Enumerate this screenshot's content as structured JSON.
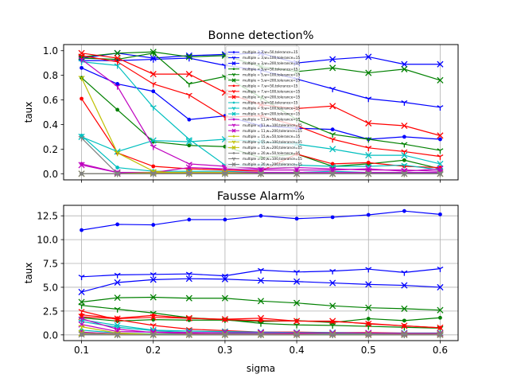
{
  "chart_data": [
    {
      "type": "line",
      "title": "Bonne detection%",
      "xlabel": "",
      "ylabel": "taux",
      "xlim": [
        0.075,
        0.625
      ],
      "ylim": [
        -0.05,
        1.05
      ],
      "grid": "x-only",
      "legend_position": "center (overlapping plot)",
      "xticks": [
        "0.1",
        "0.2",
        "0.3",
        "0.4",
        "0.5",
        "0.6"
      ],
      "yticks": [
        "0.0",
        "0.2",
        "0.4",
        "0.6",
        "0.8",
        "1.0"
      ],
      "x": [
        0.1,
        0.15,
        0.2,
        0.25,
        0.3,
        0.35,
        0.4,
        0.45,
        0.5,
        0.55,
        0.6
      ],
      "series": [
        {
          "name": "multiple = 3,w=50,tolerance=15",
          "color": "#0000ff",
          "marker": ".",
          "values": [
            0.86,
            0.73,
            0.67,
            0.44,
            0.47,
            0.39,
            0.37,
            0.36,
            0.28,
            0.3,
            0.28
          ]
        },
        {
          "name": "multiple = 3,w=100,tolerance=15",
          "color": "#0000ff",
          "marker": "1",
          "values": [
            0.92,
            0.92,
            0.93,
            0.94,
            0.88,
            0.84,
            0.77,
            0.69,
            0.61,
            0.58,
            0.54
          ]
        },
        {
          "name": "multiple = 3,w=200,tolerance=15",
          "color": "#0000ff",
          "marker": "x",
          "values": [
            0.94,
            0.98,
            0.94,
            0.96,
            0.97,
            0.98,
            0.9,
            0.93,
            0.95,
            0.89,
            0.89
          ]
        },
        {
          "name": "multiple = 5,w=50,tolerance=15",
          "color": "#008000",
          "marker": ".",
          "values": [
            0.78,
            0.52,
            0.26,
            0.23,
            0.22,
            0.13,
            0.16,
            0.06,
            0.08,
            0.11,
            0.04
          ]
        },
        {
          "name": "multiple = 5,w=100,tolerance=15",
          "color": "#008000",
          "marker": "1",
          "values": [
            0.94,
            0.93,
            0.98,
            0.73,
            0.79,
            0.62,
            0.44,
            0.32,
            0.28,
            0.24,
            0.19
          ]
        },
        {
          "name": "multiple = 5,w=200,tolerance=15",
          "color": "#008000",
          "marker": "x",
          "values": [
            0.95,
            0.98,
            0.99,
            0.95,
            0.96,
            0.87,
            0.83,
            0.86,
            0.82,
            0.85,
            0.76
          ]
        },
        {
          "name": "multiple = 7,w=50,tolerance=15",
          "color": "#ff0000",
          "marker": ".",
          "values": [
            0.61,
            0.17,
            0.06,
            0.04,
            0.03,
            0.02,
            0.16,
            0.08,
            0.09,
            0.06,
            0.05
          ]
        },
        {
          "name": "multiple = 7,w=100,tolerance=15",
          "color": "#ff0000",
          "marker": "1",
          "values": [
            0.96,
            0.91,
            0.73,
            0.64,
            0.46,
            0.47,
            0.39,
            0.28,
            0.21,
            0.18,
            0.14
          ]
        },
        {
          "name": "multiple = 7,w=200,tolerance=15",
          "color": "#ff0000",
          "marker": "x",
          "values": [
            0.98,
            0.94,
            0.81,
            0.81,
            0.66,
            0.56,
            0.53,
            0.55,
            0.41,
            0.39,
            0.31
          ]
        },
        {
          "name": "multiple = 9,w=50,tolerance=15",
          "color": "#00bfbf",
          "marker": ".",
          "values": [
            0.31,
            0.05,
            0.02,
            0.02,
            0.02,
            0.01,
            0.01,
            0.02,
            0.01,
            0.01,
            0.01
          ]
        },
        {
          "name": "multiple = 9,w=100,tolerance=15",
          "color": "#00bfbf",
          "marker": "1",
          "values": [
            0.91,
            0.88,
            0.54,
            0.28,
            0.07,
            0.07,
            0.07,
            0.06,
            0.06,
            0.07,
            0.03
          ]
        },
        {
          "name": "multiple = 9,w=200,tolerance=15",
          "color": "#00bfbf",
          "marker": "x",
          "values": [
            0.3,
            0.18,
            0.27,
            0.26,
            0.28,
            0.26,
            0.24,
            0.2,
            0.15,
            0.15,
            0.08
          ]
        },
        {
          "name": "multiple = 11,w=50,tolerance=15",
          "color": "#bf00bf",
          "marker": ".",
          "values": [
            0.08,
            0.01,
            0.01,
            0.01,
            0.01,
            0.01,
            0.01,
            0.01,
            0.01,
            0.01,
            0.01
          ]
        },
        {
          "name": "multiple = 11,w=100,tolerance=15",
          "color": "#bf00bf",
          "marker": "1",
          "values": [
            0.93,
            0.71,
            0.22,
            0.08,
            0.06,
            0.04,
            0.05,
            0.04,
            0.03,
            0.03,
            0.02
          ]
        },
        {
          "name": "multiple = 11,w=200,tolerance=15",
          "color": "#bf00bf",
          "marker": "x",
          "values": [
            0.07,
            0.01,
            0.01,
            0.05,
            0.04,
            0.03,
            0.03,
            0.03,
            0.04,
            0.02,
            0.04
          ]
        },
        {
          "name": "multiple = 15,w=50,tolerance=15",
          "color": "#bfbf00",
          "marker": ".",
          "values": [
            0.0,
            0.0,
            0.0,
            0.0,
            0.0,
            0.0,
            0.0,
            0.0,
            0.0,
            0.0,
            0.0
          ]
        },
        {
          "name": "multiple = 15,w=100,tolerance=15",
          "color": "#bfbf00",
          "marker": "1",
          "values": [
            0.78,
            0.17,
            0.02,
            0.0,
            0.0,
            0.0,
            0.0,
            0.0,
            0.0,
            0.0,
            0.0
          ]
        },
        {
          "name": "multiple = 15,w=200,tolerance=15",
          "color": "#bfbf00",
          "marker": "x",
          "values": [
            0.0,
            0.0,
            0.01,
            0.01,
            0.01,
            0.0,
            0.0,
            0.0,
            0.0,
            0.0,
            0.0
          ]
        },
        {
          "name": "multiple = 20,w=50,tolerance=15",
          "color": "#808080",
          "marker": ".",
          "values": [
            0.0,
            0.0,
            0.0,
            0.0,
            0.0,
            0.0,
            0.0,
            0.0,
            0.0,
            0.0,
            0.0
          ]
        },
        {
          "name": "multiple = 20,w=100,tolerance=15",
          "color": "#808080",
          "marker": "1",
          "values": [
            0.29,
            0.0,
            0.0,
            0.0,
            0.0,
            0.0,
            0.0,
            0.0,
            0.0,
            0.0,
            0.0
          ]
        },
        {
          "name": "multiple = 20,w=200,tolerance=15",
          "color": "#808080",
          "marker": "x",
          "values": [
            0.0,
            0.0,
            0.0,
            0.0,
            0.0,
            0.0,
            0.0,
            0.0,
            0.0,
            0.0,
            0.0
          ]
        }
      ]
    },
    {
      "type": "line",
      "title": "Fausse Alarm%",
      "xlabel": "sigma",
      "ylabel": "taux",
      "xlim": [
        0.075,
        0.625
      ],
      "ylim": [
        -0.6,
        13.6
      ],
      "grid": "both",
      "xticks": [
        "0.1",
        "0.2",
        "0.3",
        "0.4",
        "0.5",
        "0.6"
      ],
      "yticks": [
        "0.0",
        "2.5",
        "5.0",
        "7.5",
        "10.0",
        "12.5"
      ],
      "x": [
        0.1,
        0.15,
        0.2,
        0.25,
        0.3,
        0.35,
        0.4,
        0.45,
        0.5,
        0.55,
        0.6
      ],
      "series": [
        {
          "color": "#0000ff",
          "marker": ".",
          "values": [
            11.0,
            11.6,
            11.55,
            12.1,
            12.1,
            12.5,
            12.2,
            12.35,
            12.6,
            13.0,
            12.65
          ]
        },
        {
          "color": "#0000ff",
          "marker": "1",
          "values": [
            6.1,
            6.3,
            6.35,
            6.4,
            6.2,
            6.8,
            6.6,
            6.7,
            6.9,
            6.55,
            6.95
          ]
        },
        {
          "color": "#0000ff",
          "marker": "x",
          "values": [
            4.5,
            5.5,
            5.8,
            5.9,
            5.85,
            5.7,
            5.6,
            5.45,
            5.3,
            5.2,
            5.0
          ]
        },
        {
          "color": "#008000",
          "marker": ".",
          "values": [
            1.8,
            1.45,
            1.6,
            1.55,
            1.55,
            1.4,
            1.5,
            1.3,
            1.7,
            1.5,
            1.8
          ]
        },
        {
          "color": "#008000",
          "marker": "1",
          "values": [
            3.1,
            2.7,
            2.3,
            1.8,
            1.6,
            1.2,
            1.05,
            1.0,
            0.9,
            0.8,
            0.7
          ]
        },
        {
          "color": "#008000",
          "marker": "x",
          "values": [
            3.45,
            3.9,
            3.95,
            3.85,
            3.85,
            3.55,
            3.35,
            3.05,
            2.85,
            2.75,
            2.6
          ]
        },
        {
          "color": "#ff0000",
          "marker": ".",
          "values": [
            2.1,
            1.75,
            2.05,
            1.75,
            1.6,
            1.5,
            1.45,
            1.4,
            1.2,
            0.95,
            0.75
          ]
        },
        {
          "color": "#ff0000",
          "marker": "1",
          "values": [
            2.5,
            1.6,
            1.0,
            0.6,
            0.45,
            0.3,
            0.3,
            0.25,
            0.25,
            0.2,
            0.2
          ]
        },
        {
          "color": "#ff0000",
          "marker": "x",
          "values": [
            1.9,
            1.7,
            1.85,
            1.75,
            1.65,
            1.75,
            1.45,
            1.45,
            1.15,
            0.95,
            0.75
          ]
        },
        {
          "color": "#00bfbf",
          "marker": ".",
          "values": [
            0.5,
            0.2,
            0.1,
            0.1,
            0.05,
            0.05,
            0.05,
            0.05,
            0.05,
            0.05,
            0.05
          ]
        },
        {
          "color": "#00bfbf",
          "marker": "1",
          "values": [
            1.4,
            0.8,
            0.45,
            0.25,
            0.2,
            0.15,
            0.15,
            0.15,
            0.1,
            0.1,
            0.1
          ]
        },
        {
          "color": "#00bfbf",
          "marker": "x",
          "values": [
            1.6,
            1.0,
            0.5,
            0.4,
            0.35,
            0.3,
            0.25,
            0.25,
            0.2,
            0.2,
            0.2
          ]
        },
        {
          "color": "#bf00bf",
          "marker": ".",
          "values": [
            0.3,
            0.1,
            0.05,
            0.05,
            0.05,
            0.05,
            0.05,
            0.05,
            0.05,
            0.05,
            0.05
          ]
        },
        {
          "color": "#bf00bf",
          "marker": "1",
          "values": [
            1.7,
            0.6,
            0.25,
            0.15,
            0.1,
            0.1,
            0.1,
            0.05,
            0.05,
            0.05,
            0.05
          ]
        },
        {
          "color": "#bf00bf",
          "marker": "x",
          "values": [
            1.1,
            0.35,
            0.3,
            0.25,
            0.25,
            0.25,
            0.2,
            0.2,
            0.2,
            0.15,
            0.15
          ]
        },
        {
          "color": "#bfbf00",
          "marker": ".",
          "values": [
            0.05,
            0.05,
            0.0,
            0.0,
            0.0,
            0.0,
            0.0,
            0.0,
            0.0,
            0.0,
            0.0
          ]
        },
        {
          "color": "#bfbf00",
          "marker": "1",
          "values": [
            0.85,
            0.2,
            0.05,
            0.0,
            0.0,
            0.0,
            0.0,
            0.0,
            0.0,
            0.0,
            0.0
          ]
        },
        {
          "color": "#bfbf00",
          "marker": "x",
          "values": [
            0.2,
            0.05,
            0.05,
            0.05,
            0.05,
            0.05,
            0.05,
            0.05,
            0.05,
            0.05,
            0.05
          ]
        },
        {
          "color": "#808080",
          "marker": ".",
          "values": [
            0.0,
            0.0,
            0.0,
            0.0,
            0.0,
            0.0,
            0.0,
            0.0,
            0.0,
            0.0,
            0.0
          ]
        },
        {
          "color": "#808080",
          "marker": "1",
          "values": [
            0.15,
            0.0,
            0.0,
            0.0,
            0.0,
            0.0,
            0.0,
            0.0,
            0.0,
            0.0,
            0.0
          ]
        },
        {
          "color": "#808080",
          "marker": "x",
          "values": [
            0.05,
            0.0,
            0.0,
            0.0,
            0.0,
            0.0,
            0.0,
            0.0,
            0.0,
            0.0,
            0.0
          ]
        }
      ]
    }
  ]
}
